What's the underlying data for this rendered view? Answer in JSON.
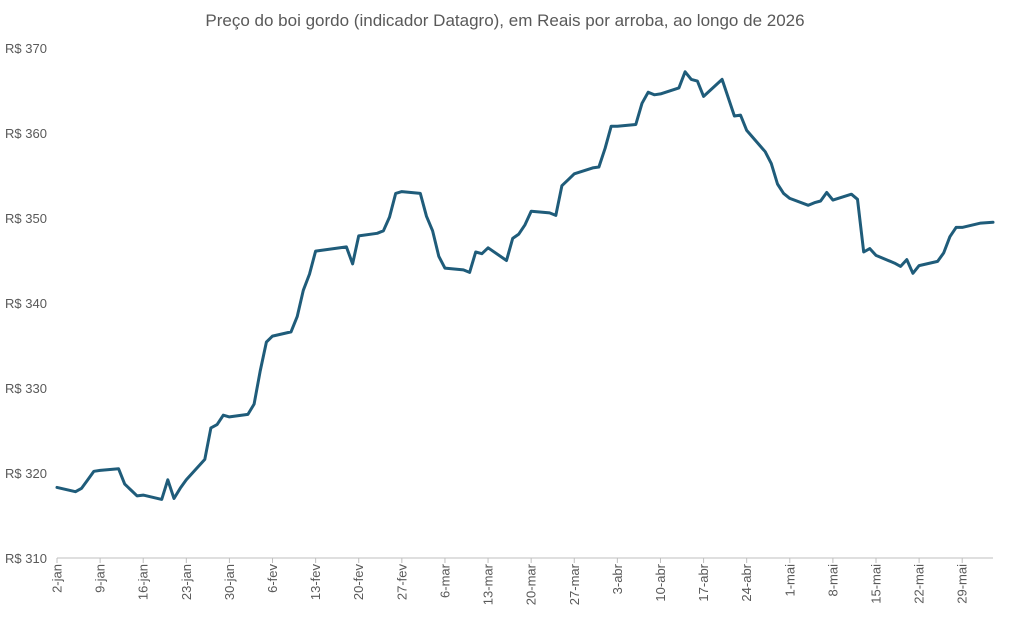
{
  "chart_data": {
    "type": "line",
    "title": "Preço do boi gordo (indicador Datagro), em Reais por arroba, ao longo de 2026",
    "xlabel": "",
    "ylabel": "",
    "ylim": [
      310,
      370
    ],
    "y_ticks": [
      310,
      320,
      330,
      340,
      350,
      360,
      370
    ],
    "y_tick_prefix": "R$ ",
    "x_ticks": [
      "2-jan",
      "9-jan",
      "16-jan",
      "23-jan",
      "30-jan",
      "6-fev",
      "13-fev",
      "20-fev",
      "27-fev",
      "6-mar",
      "13-mar",
      "20-mar",
      "27-mar",
      "3-abr",
      "10-abr",
      "17-abr",
      "24-abr",
      "1-mai",
      "8-mai",
      "15-mai",
      "22-mai",
      "29-mai"
    ],
    "x_start": "2026-01-02",
    "x_end": "2026-06-03",
    "grid": false,
    "legend": "none",
    "line_color": "#1f5c7a",
    "series": [
      {
        "x": [
          "2026-01-02",
          "2026-01-05",
          "2026-01-06",
          "2026-01-07",
          "2026-01-08",
          "2026-01-09",
          "2026-01-12",
          "2026-01-13",
          "2026-01-14",
          "2026-01-15",
          "2026-01-16",
          "2026-01-19",
          "2026-01-20",
          "2026-01-21",
          "2026-01-22",
          "2026-01-23",
          "2026-01-26",
          "2026-01-27",
          "2026-01-28",
          "2026-01-29",
          "2026-01-30",
          "2026-02-02",
          "2026-02-03",
          "2026-02-04",
          "2026-02-05",
          "2026-02-06",
          "2026-02-09",
          "2026-02-10",
          "2026-02-11",
          "2026-02-12",
          "2026-02-13",
          "2026-02-18",
          "2026-02-19",
          "2026-02-20",
          "2026-02-23",
          "2026-02-24",
          "2026-02-25",
          "2026-02-26",
          "2026-02-27",
          "2026-03-02",
          "2026-03-03",
          "2026-03-04",
          "2026-03-05",
          "2026-03-06",
          "2026-03-09",
          "2026-03-10",
          "2026-03-11",
          "2026-03-12",
          "2026-03-13",
          "2026-03-16",
          "2026-03-17",
          "2026-03-18",
          "2026-03-19",
          "2026-03-20",
          "2026-03-23",
          "2026-03-24",
          "2026-03-25",
          "2026-03-26",
          "2026-03-27",
          "2026-03-30",
          "2026-03-31",
          "2026-04-01",
          "2026-04-02",
          "2026-04-03",
          "2026-04-06",
          "2026-04-07",
          "2026-04-08",
          "2026-04-09",
          "2026-04-10",
          "2026-04-13",
          "2026-04-14",
          "2026-04-15",
          "2026-04-16",
          "2026-04-17",
          "2026-04-20",
          "2026-04-22",
          "2026-04-23",
          "2026-04-24",
          "2026-04-27",
          "2026-04-28",
          "2026-04-29",
          "2026-04-30",
          "2026-05-01",
          "2026-05-04",
          "2026-05-05",
          "2026-05-06",
          "2026-05-07",
          "2026-05-08",
          "2026-05-11",
          "2026-05-12",
          "2026-05-13",
          "2026-05-14",
          "2026-05-15",
          "2026-05-18",
          "2026-05-19",
          "2026-05-20",
          "2026-05-21",
          "2026-05-22",
          "2026-05-25",
          "2026-05-26",
          "2026-05-27",
          "2026-05-28",
          "2026-05-29",
          "2026-06-01",
          "2026-06-03"
        ],
        "values": [
          318.3,
          317.8,
          318.2,
          319.2,
          320.2,
          320.3,
          320.5,
          318.7,
          318.0,
          317.3,
          317.4,
          316.9,
          319.2,
          317.0,
          318.2,
          319.2,
          321.6,
          325.3,
          325.7,
          326.8,
          326.6,
          326.9,
          328.1,
          332.0,
          335.4,
          336.1,
          336.6,
          338.4,
          341.5,
          343.4,
          346.1,
          346.6,
          344.6,
          347.9,
          348.2,
          348.5,
          350.1,
          352.9,
          353.1,
          352.9,
          350.2,
          348.5,
          345.5,
          344.1,
          343.9,
          343.6,
          346.0,
          345.8,
          346.5,
          345.0,
          347.6,
          348.1,
          349.2,
          350.8,
          350.6,
          350.3,
          353.8,
          354.5,
          355.2,
          355.9,
          356.0,
          358.2,
          360.8,
          360.8,
          361.0,
          363.5,
          364.8,
          364.5,
          364.6,
          365.3,
          367.2,
          366.3,
          366.1,
          364.3,
          366.3,
          362.0,
          362.1,
          360.3,
          357.8,
          356.4,
          354.0,
          352.9,
          352.3,
          351.5,
          351.8,
          352.0,
          353.0,
          352.1,
          352.8,
          352.2,
          346.0,
          346.4,
          345.6,
          344.7,
          344.3,
          345.1,
          343.5,
          344.4,
          344.9,
          345.9,
          347.8,
          348.9,
          348.9,
          349.4,
          349.5
        ]
      }
    ]
  }
}
